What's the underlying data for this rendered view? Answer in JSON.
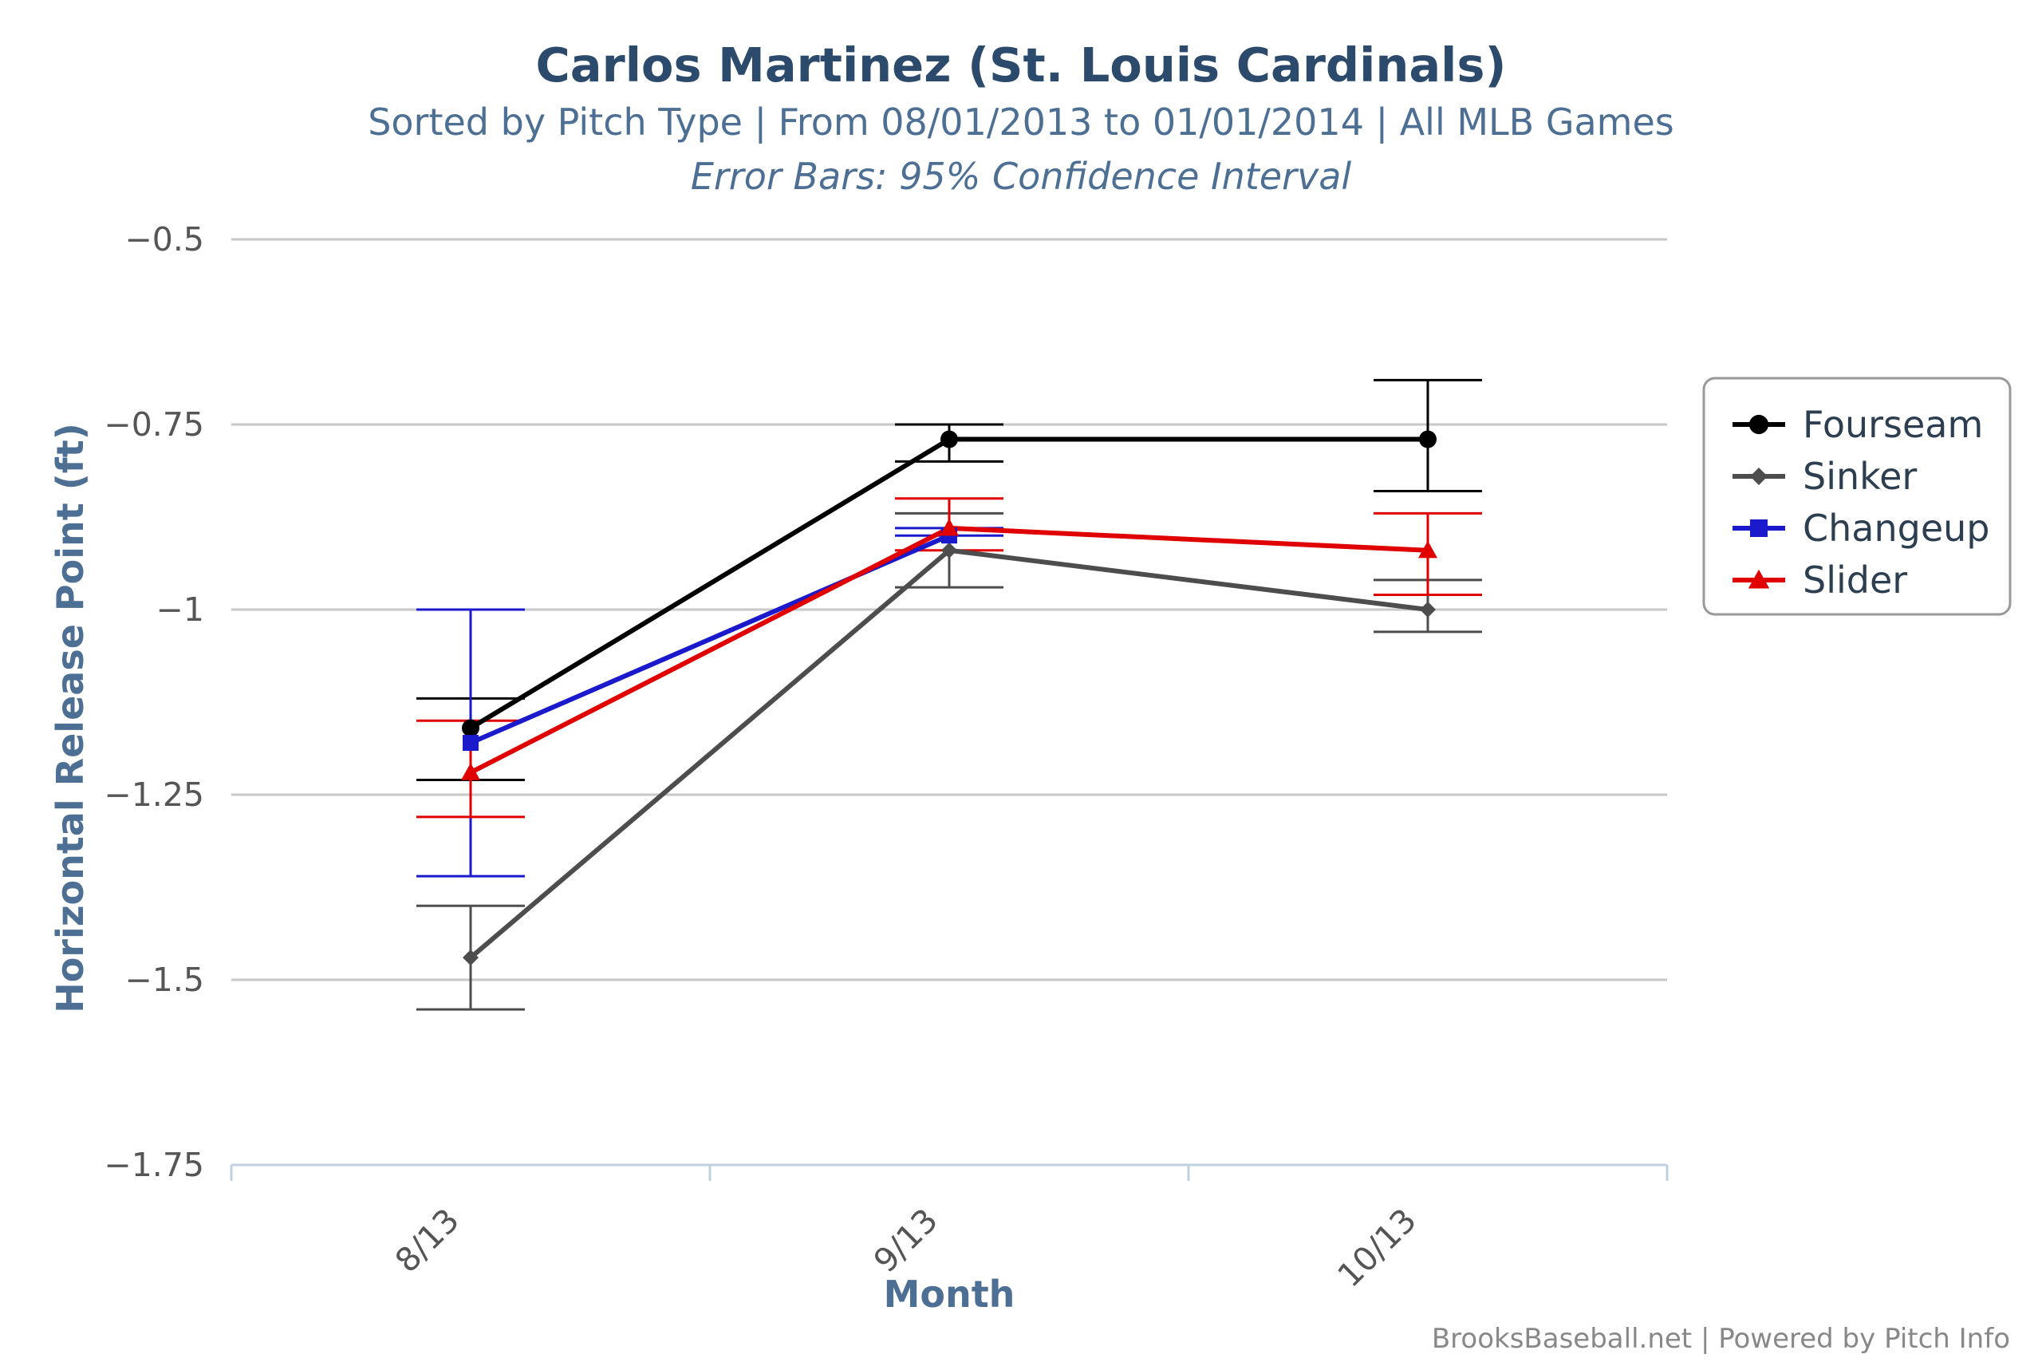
{
  "chart_data": {
    "type": "line",
    "title": "Carlos Martinez (St. Louis Cardinals)",
    "subtitle": "Sorted by Pitch Type | From 08/01/2013 to 01/01/2014 | All MLB Games",
    "subtitle2": "Error Bars: 95% Confidence Interval",
    "xlabel": "Month",
    "ylabel": "Horizontal Release Point (ft)",
    "categories": [
      "8/13",
      "9/13",
      "10/13"
    ],
    "ylim": [
      -1.75,
      -0.5
    ],
    "yticks": [
      -0.5,
      -0.75,
      -1,
      -1.25,
      -1.5,
      -1.75
    ],
    "ytick_labels": [
      "−0.5",
      "−0.75",
      "−1",
      "−1.25",
      "−1.5",
      "−1.75"
    ],
    "grid": true,
    "legend_position": "right",
    "series": [
      {
        "name": "Fourseam",
        "color": "#000000",
        "marker": "circle",
        "values": [
          -1.16,
          -0.77,
          -0.77
        ],
        "error_low": [
          -1.23,
          -0.8,
          -0.84
        ],
        "error_high": [
          -1.12,
          -0.75,
          -0.69
        ]
      },
      {
        "name": "Sinker",
        "color": "#4d4d4d",
        "marker": "diamond",
        "values": [
          -1.47,
          -0.92,
          -1.0
        ],
        "error_low": [
          -1.54,
          -0.97,
          -1.03
        ],
        "error_high": [
          -1.4,
          -0.87,
          -0.96
        ]
      },
      {
        "name": "Changeup",
        "color": "#1a1acc",
        "marker": "square",
        "values": [
          -1.18,
          -0.9,
          null
        ],
        "error_low": [
          -1.36,
          -0.9,
          null
        ],
        "error_high": [
          -1.0,
          -0.89,
          null
        ]
      },
      {
        "name": "Slider",
        "color": "#e00000",
        "marker": "triangle",
        "values": [
          -1.22,
          -0.89,
          -0.92
        ],
        "error_low": [
          -1.28,
          -0.92,
          -0.98
        ],
        "error_high": [
          -1.15,
          -0.85,
          -0.87
        ]
      }
    ]
  },
  "credits": "BrooksBaseball.net | Powered by Pitch Info"
}
